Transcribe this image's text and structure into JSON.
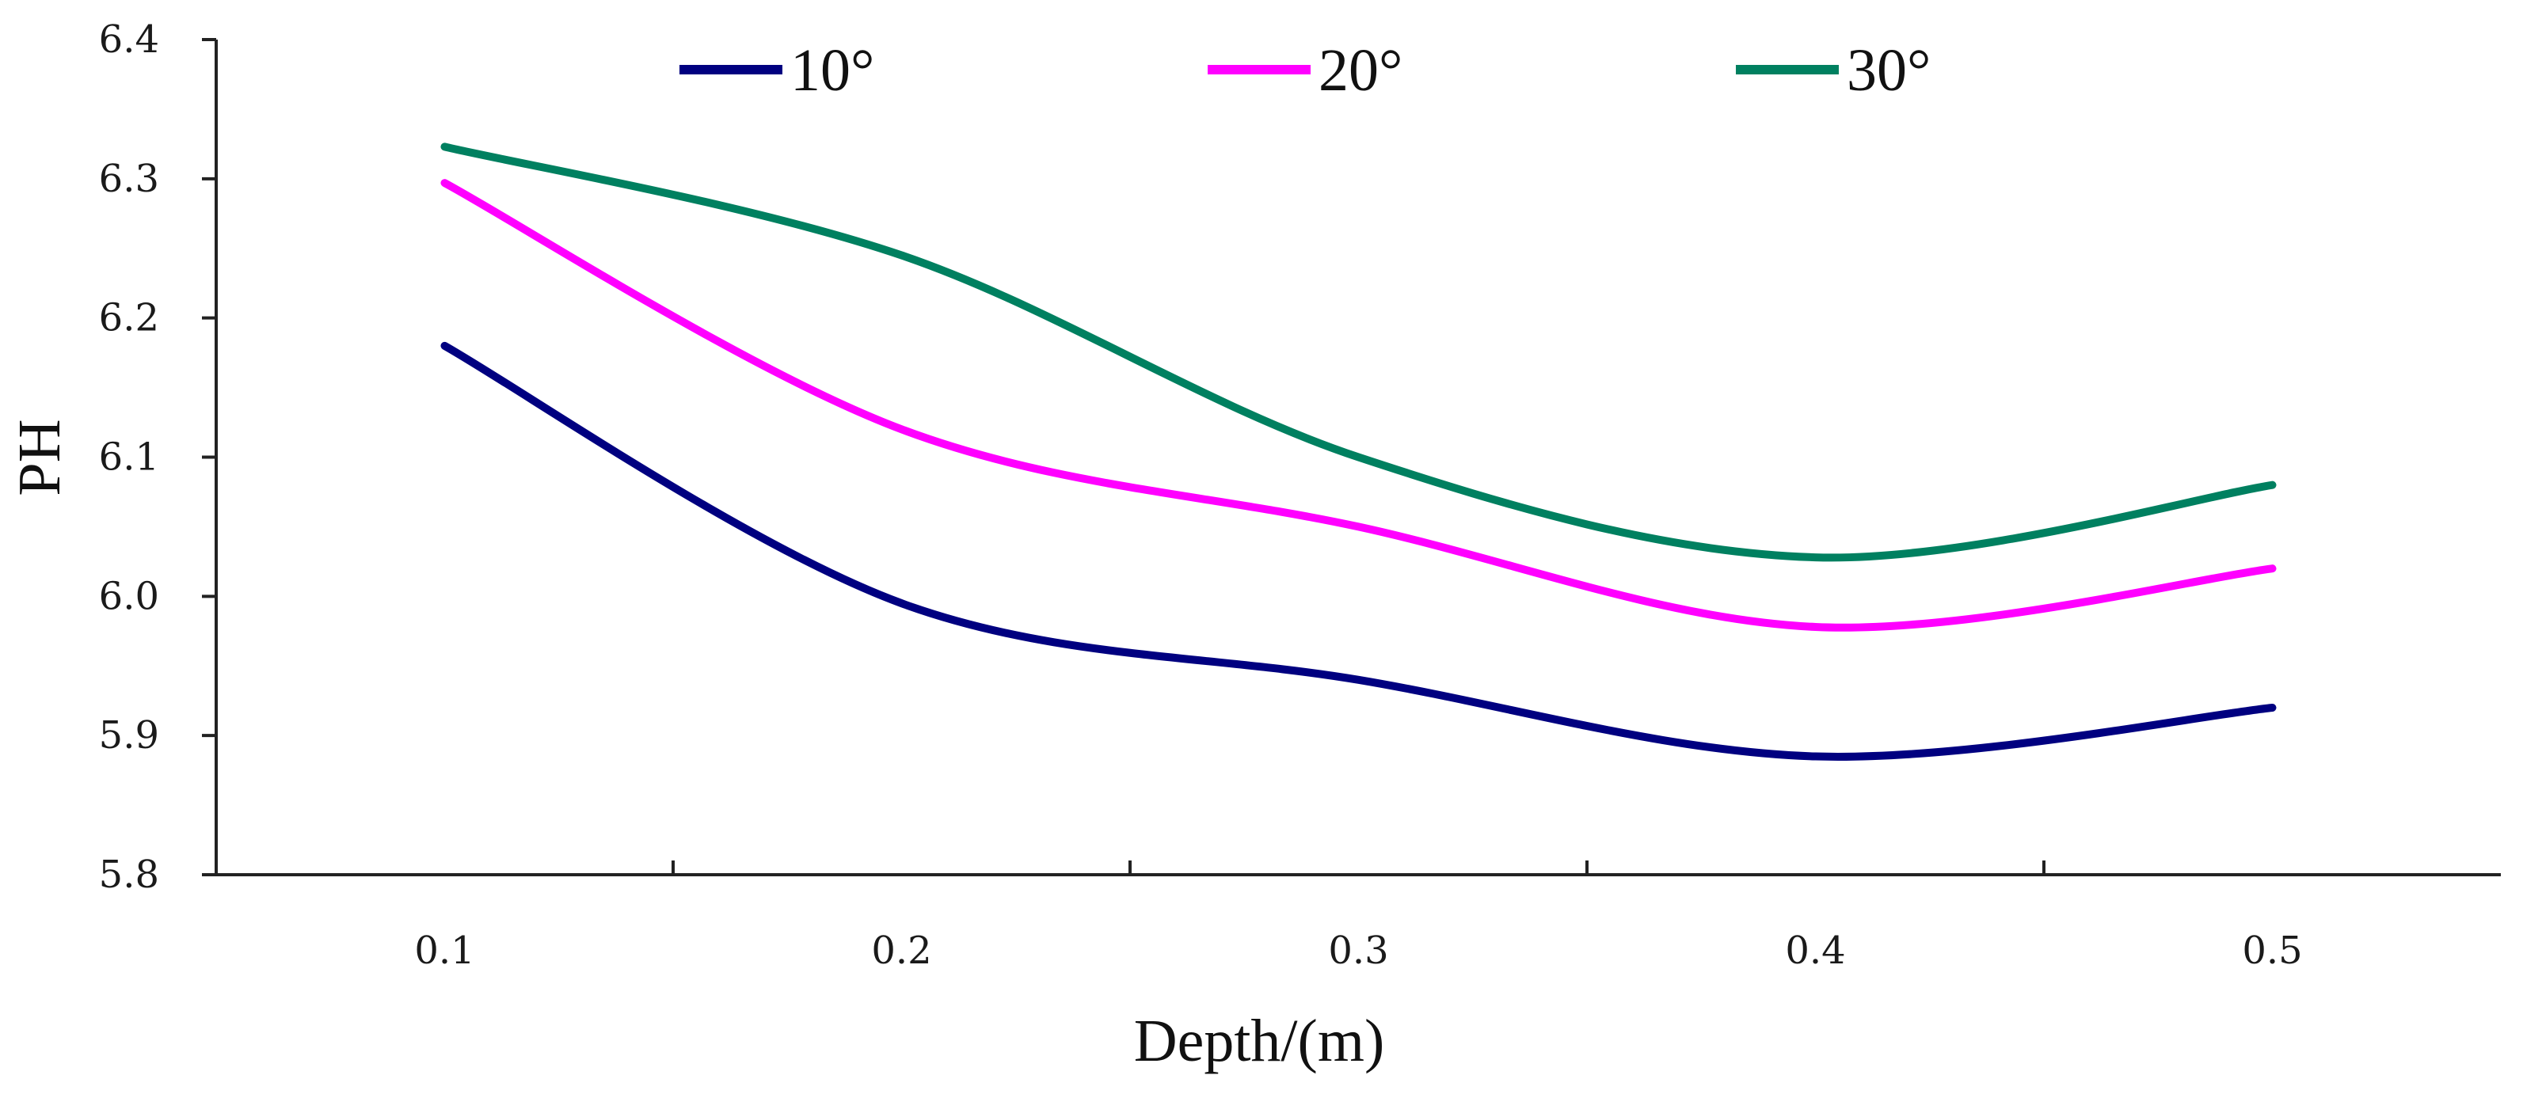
{
  "chart_data": {
    "type": "line",
    "title": "",
    "xlabel": "Depth/(m)",
    "ylabel": "PH",
    "x": [
      0.1,
      0.2,
      0.3,
      0.4,
      0.5
    ],
    "x_tick_labels": [
      "0.1",
      "0.2",
      "0.3",
      "0.4",
      "0.5"
    ],
    "y_tick_labels": [
      "5.8",
      "5.9",
      "6.0",
      "6.1",
      "6.2",
      "6.3",
      "6.4"
    ],
    "xlim": [
      0.05,
      0.55
    ],
    "ylim": [
      5.8,
      6.4
    ],
    "legend_position": "top",
    "grid": false,
    "series": [
      {
        "name": "10°",
        "color": "#000080",
        "values": [
          6.18,
          5.995,
          5.94,
          5.885,
          5.92
        ]
      },
      {
        "name": "20°",
        "color": "#ff00ff",
        "values": [
          6.297,
          6.12,
          6.05,
          5.978,
          6.02
        ]
      },
      {
        "name": "30°",
        "color": "#008060",
        "values": [
          6.323,
          6.245,
          6.1,
          6.028,
          6.08
        ]
      }
    ]
  }
}
